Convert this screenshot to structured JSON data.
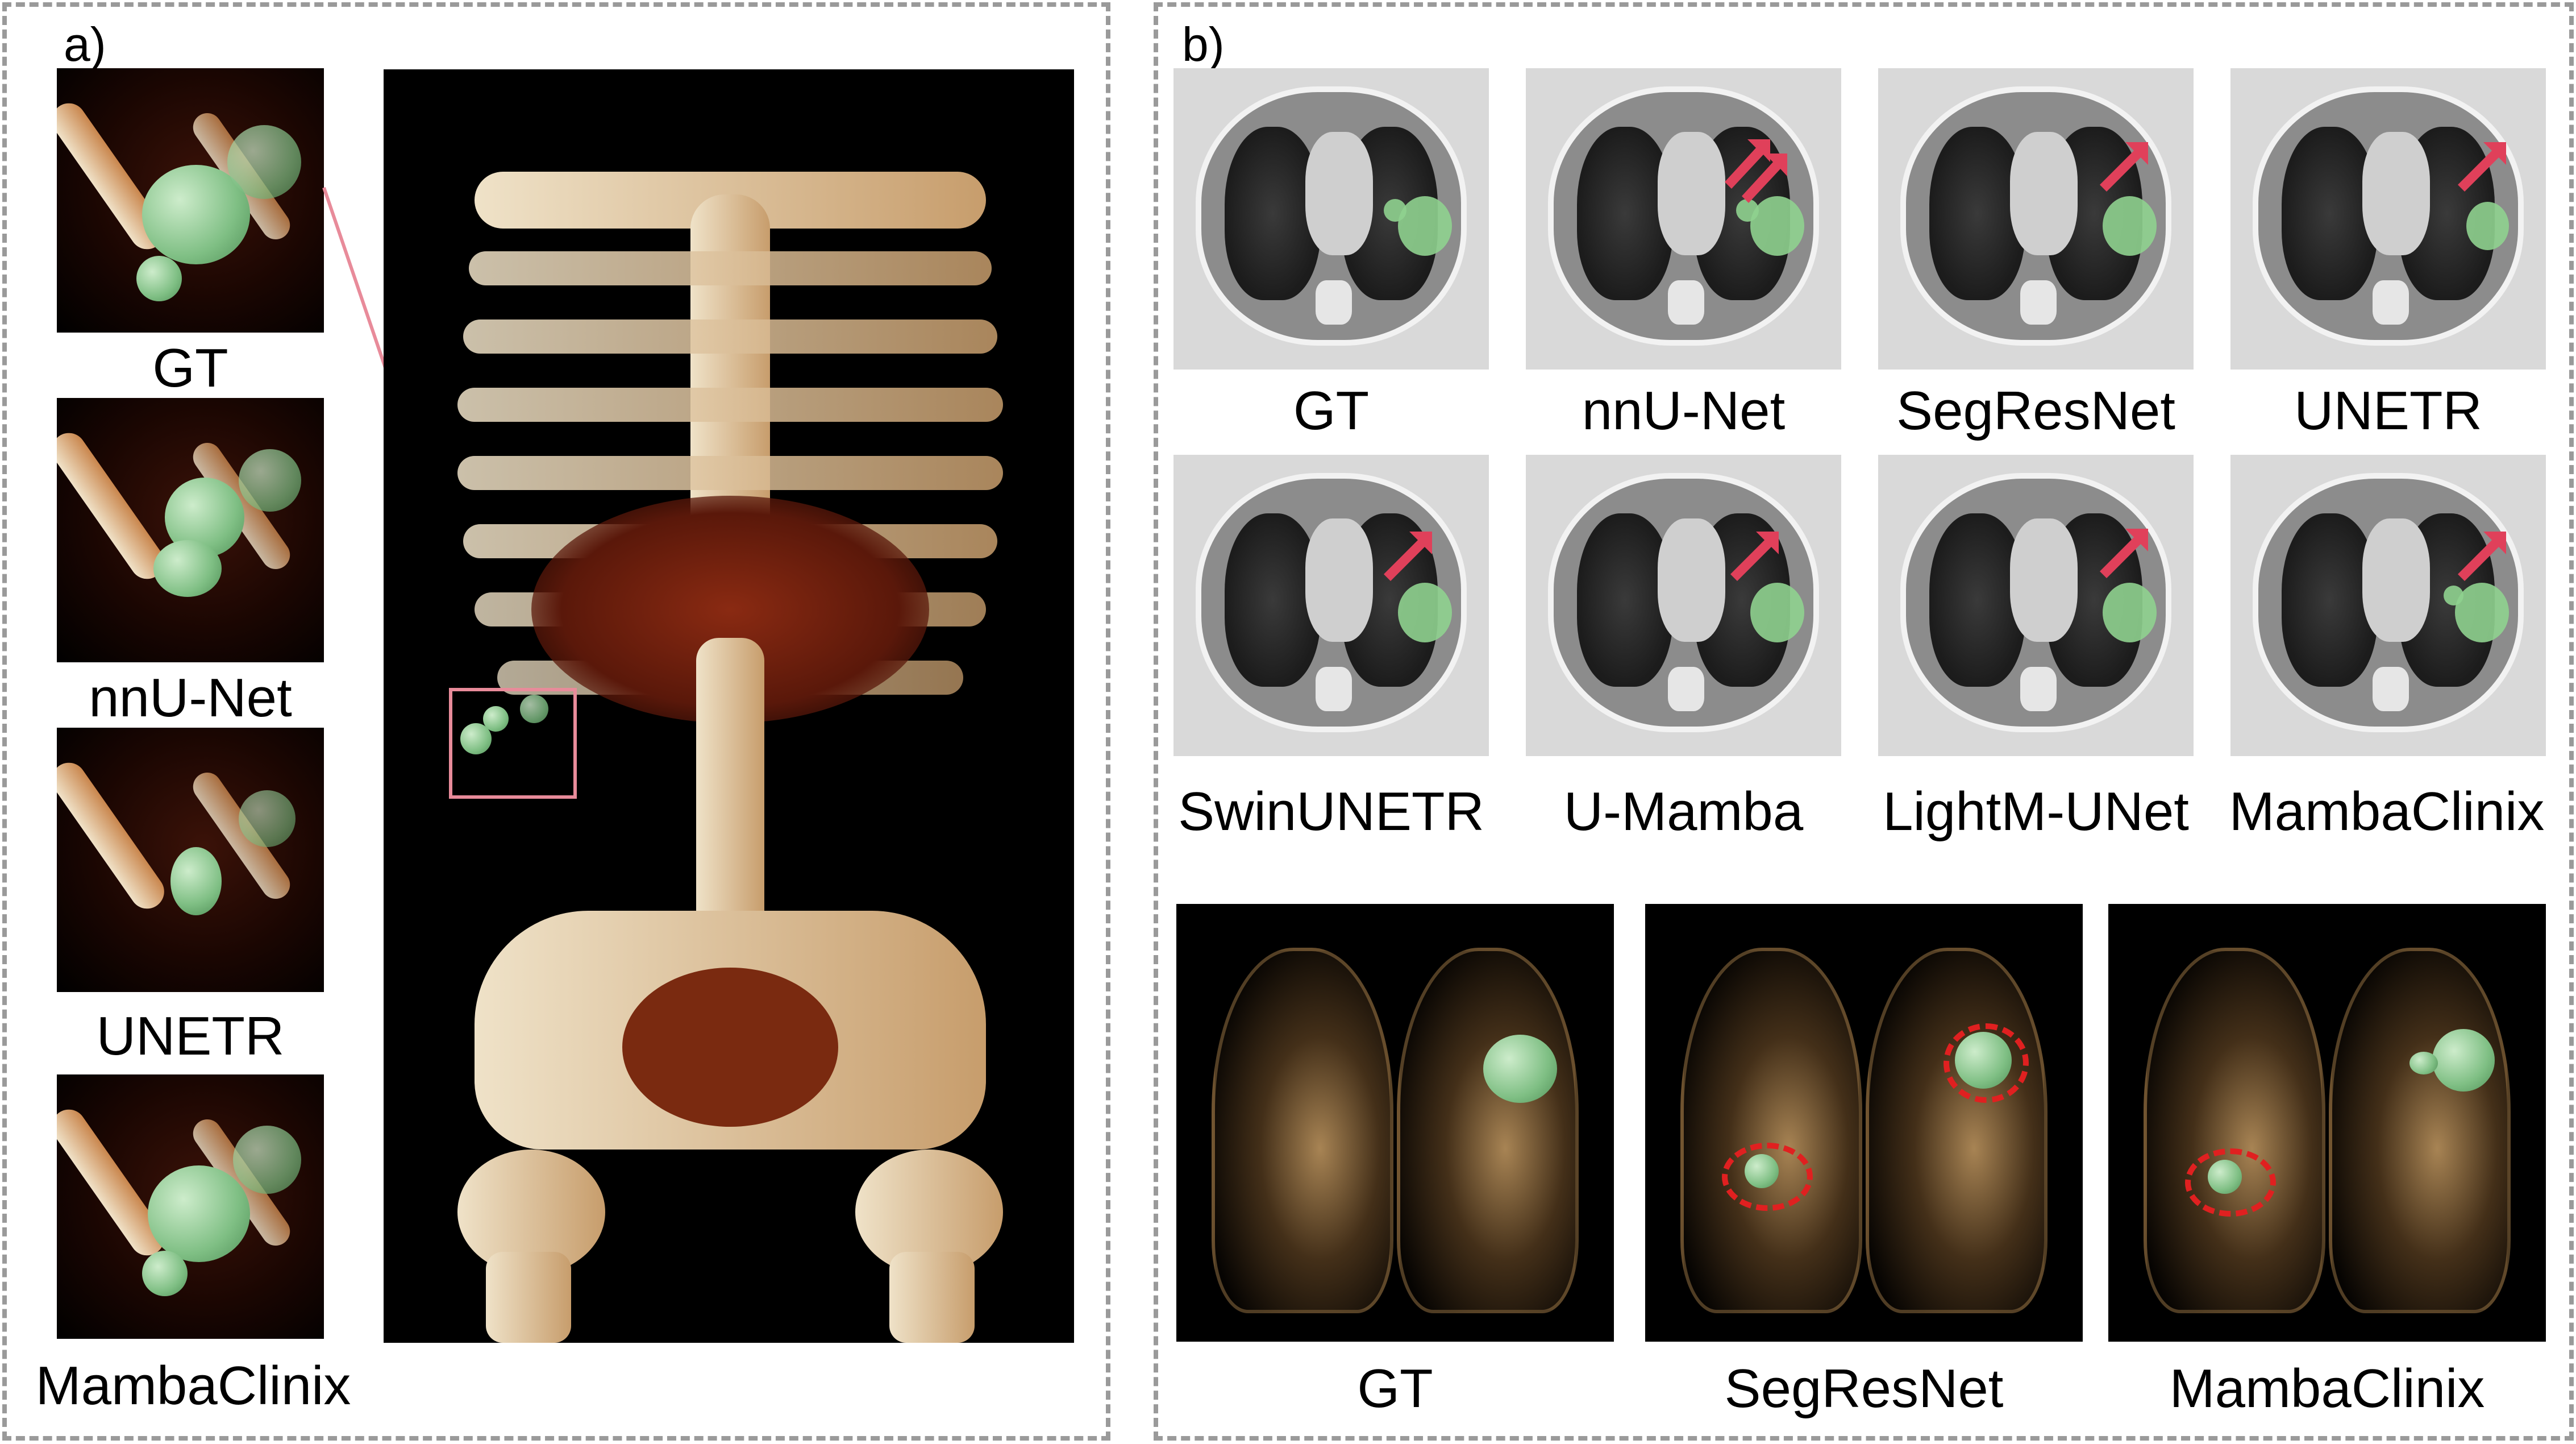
{
  "panel_a": {
    "letter": "a)",
    "thumbnails": [
      {
        "label": "GT"
      },
      {
        "label": "nnU-Net"
      },
      {
        "label": "UNETR"
      },
      {
        "label": "MambaClinix"
      }
    ]
  },
  "panel_b": {
    "letter": "b)",
    "ct_row1": [
      {
        "label": "GT"
      },
      {
        "label": "nnU-Net"
      },
      {
        "label": "SegResNet"
      },
      {
        "label": "UNETR"
      }
    ],
    "ct_row2": [
      {
        "label": "SwinUNETR"
      },
      {
        "label": "U-Mamba"
      },
      {
        "label": "LightM-UNet"
      },
      {
        "label": "MambaClinix"
      }
    ],
    "lung_3d": [
      {
        "label": "GT"
      },
      {
        "label": "SegResNet"
      },
      {
        "label": "MambaClinix"
      }
    ]
  },
  "colors": {
    "tumor": "#8fd18f",
    "arrow": "#e0405a",
    "highlight_box": "#e88b9a",
    "dashed_circle": "#e02020",
    "panel_border": "#9a9a9a"
  }
}
